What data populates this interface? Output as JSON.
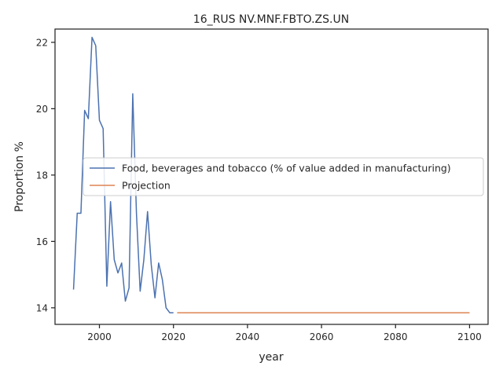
{
  "chart_data": {
    "type": "line",
    "title": "16_RUS NV.MNF.FBTO.ZS.UN",
    "xlabel": "year",
    "ylabel": "Proportion %",
    "xlim": [
      1988,
      2105
    ],
    "ylim": [
      13.5,
      22.4
    ],
    "xticks": [
      2000,
      2020,
      2040,
      2060,
      2080,
      2100
    ],
    "yticks": [
      14,
      16,
      18,
      20,
      22
    ],
    "grid": false,
    "legend_position": "center-right",
    "series": [
      {
        "name": "Food, beverages and tobacco (% of value added in manufacturing)",
        "color": "#4c72b0",
        "x": [
          1993,
          1994,
          1995,
          1996,
          1997,
          1998,
          1999,
          2000,
          2001,
          2002,
          2003,
          2004,
          2005,
          2006,
          2007,
          2008,
          2009,
          2010,
          2011,
          2012,
          2013,
          2014,
          2015,
          2016,
          2017,
          2018,
          2019,
          2020
        ],
        "values": [
          14.55,
          16.85,
          16.85,
          19.95,
          19.7,
          22.15,
          21.9,
          19.65,
          19.4,
          14.65,
          17.2,
          15.45,
          15.05,
          15.35,
          14.2,
          14.6,
          20.45,
          16.85,
          14.5,
          15.45,
          16.9,
          15.3,
          14.3,
          15.35,
          14.85,
          14.0,
          13.85,
          13.85
        ]
      },
      {
        "name": "Projection",
        "color": "#dd8452",
        "x": [
          2021,
          2100
        ],
        "values": [
          13.85,
          13.85
        ]
      }
    ]
  }
}
